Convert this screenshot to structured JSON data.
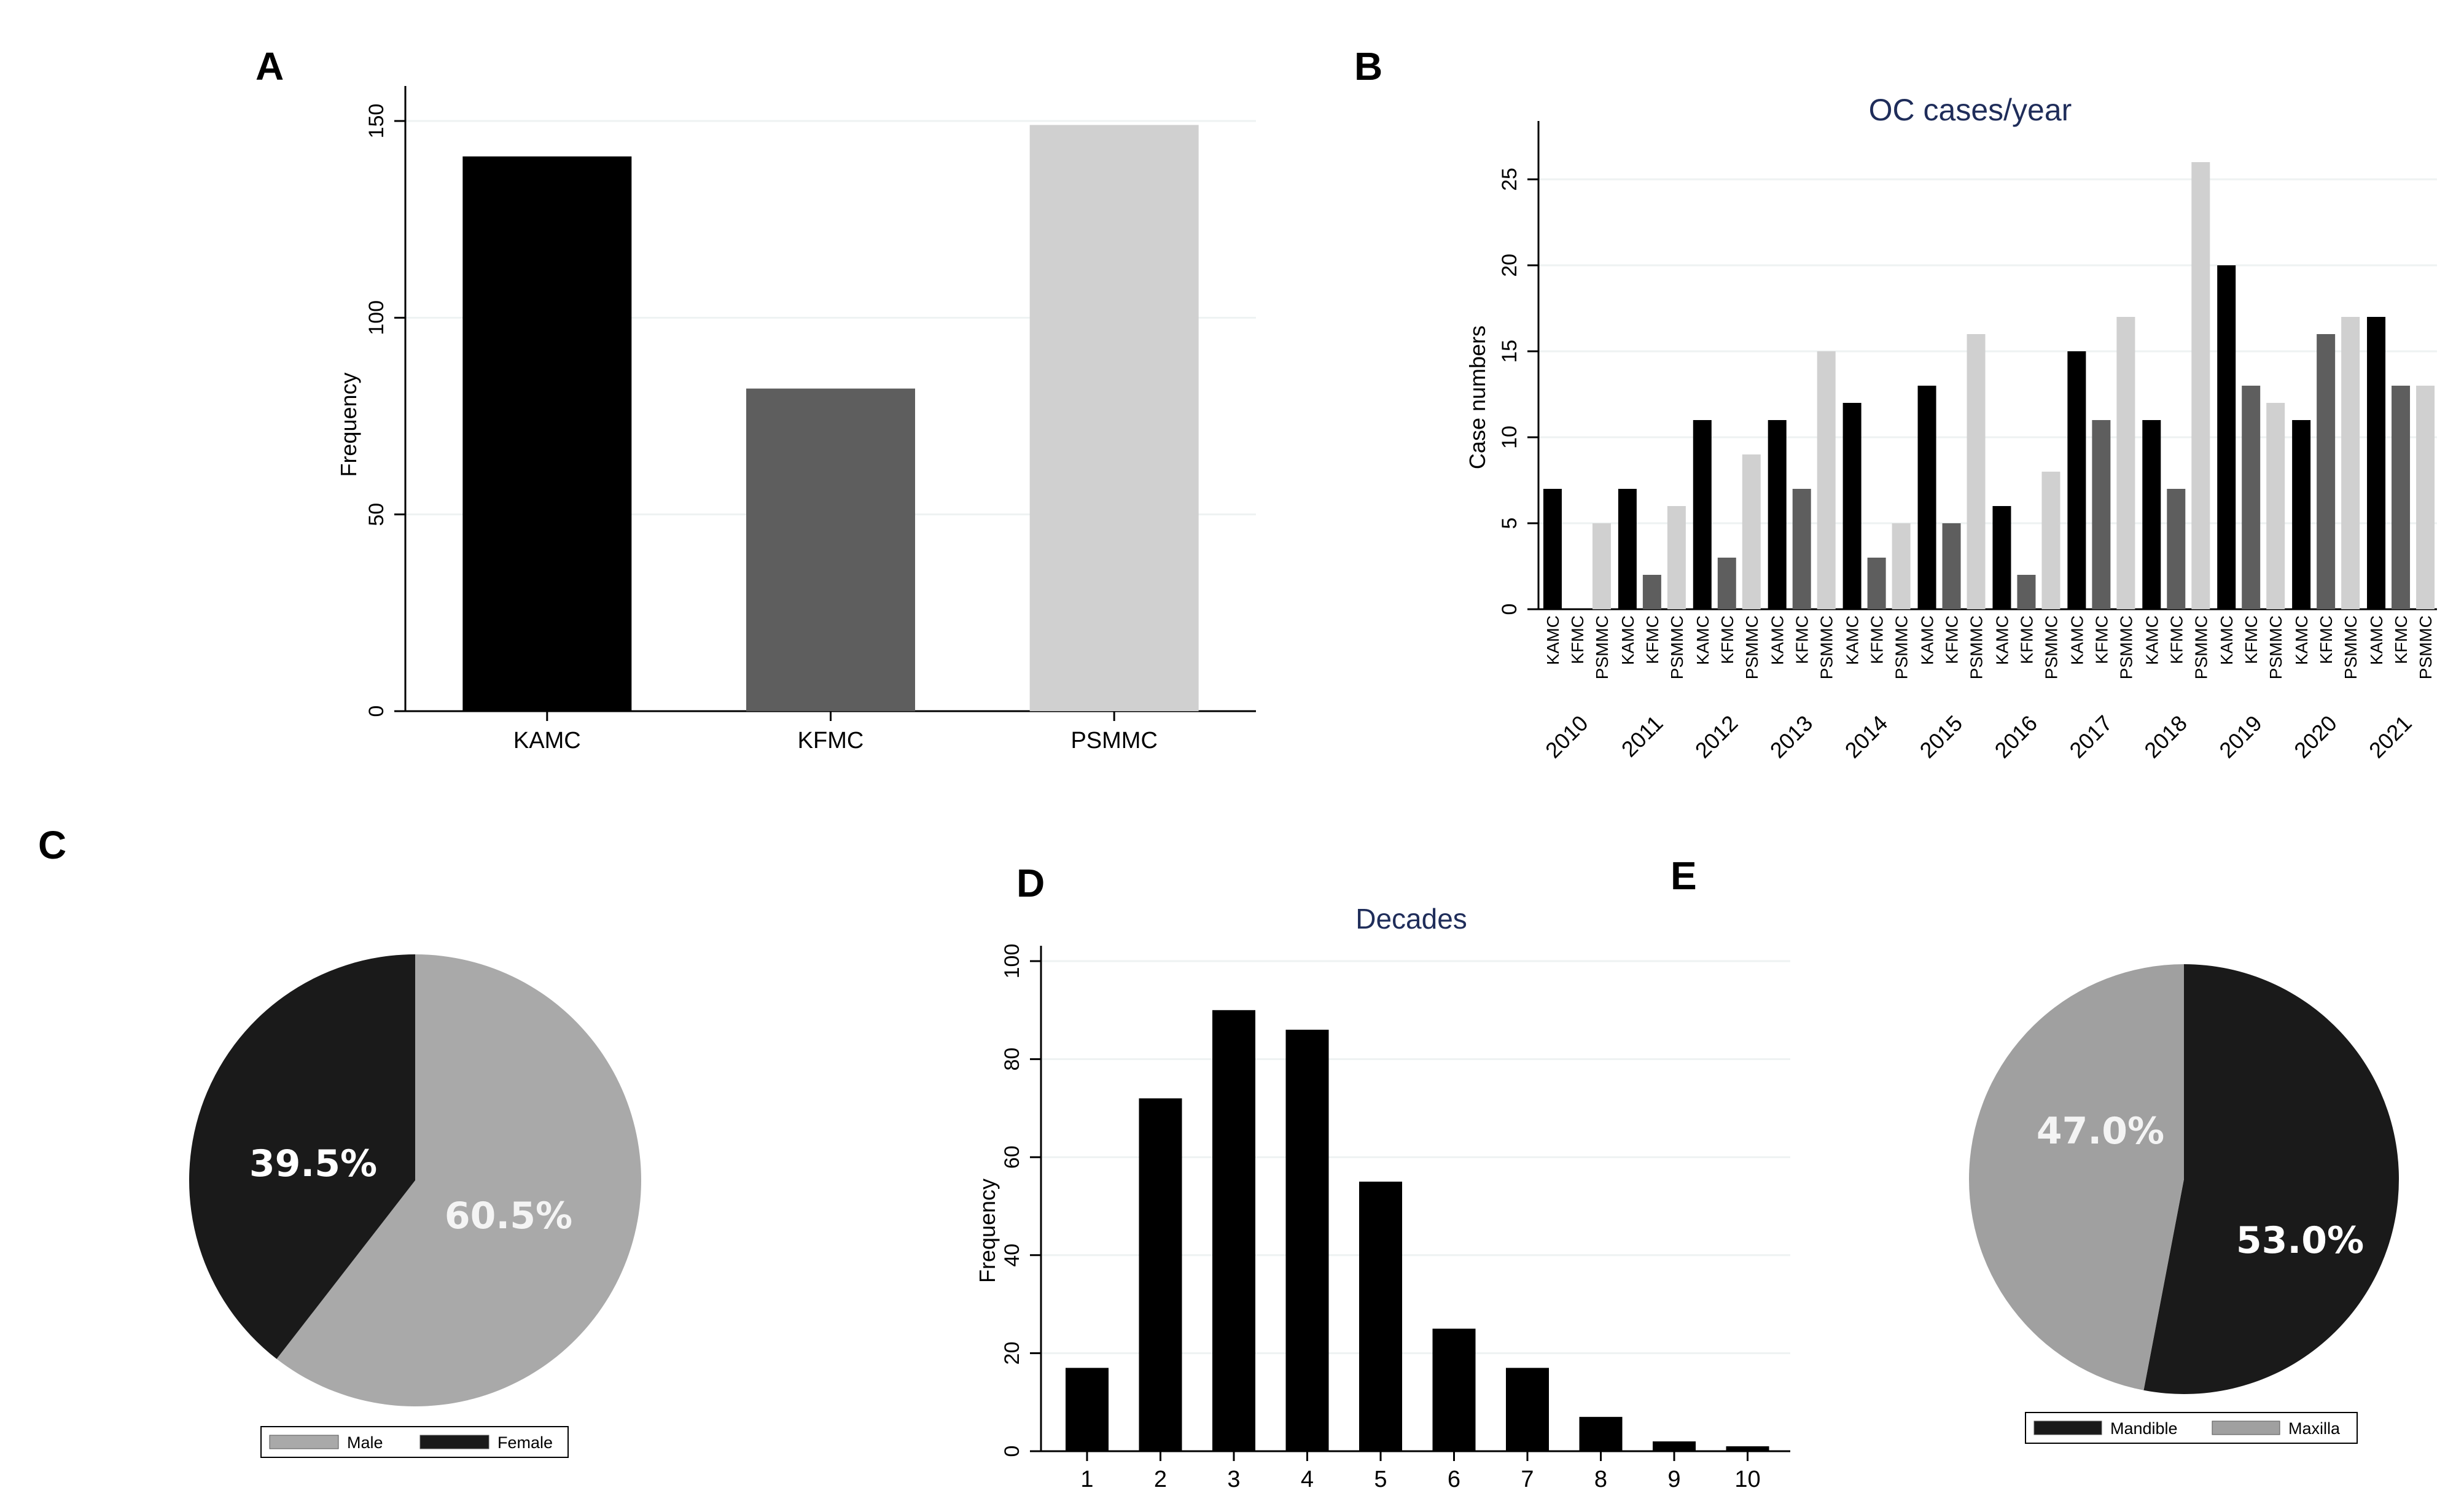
{
  "chart_data": [
    {
      "panel": "A",
      "type": "bar",
      "title": "",
      "xlabel": "",
      "ylabel": "Frequency",
      "categories": [
        "KAMC",
        "KFMC",
        "PSMMC"
      ],
      "values": [
        141,
        82,
        149
      ],
      "colors": [
        "#000000",
        "#5e5e5e",
        "#d0d0d0"
      ],
      "yticks": [
        0,
        50,
        100,
        150
      ],
      "ylim": [
        0,
        155
      ],
      "grid": true
    },
    {
      "panel": "B",
      "type": "bar",
      "title": "OC cases/year",
      "xlabel": "",
      "ylabel": "Case numbers",
      "categories": [
        "2010",
        "2011",
        "2012",
        "2013",
        "2014",
        "2015",
        "2016",
        "2017",
        "2018",
        "2019",
        "2020",
        "2021"
      ],
      "subcategories": [
        "KAMC",
        "KFMC",
        "PSMMC"
      ],
      "series": [
        {
          "name": "KAMC",
          "color": "#000000",
          "values": [
            7,
            7,
            11,
            11,
            12,
            13,
            6,
            15,
            11,
            20,
            11,
            17
          ]
        },
        {
          "name": "KFMC",
          "color": "#5e5e5e",
          "values": [
            0,
            2,
            3,
            7,
            3,
            5,
            2,
            11,
            7,
            13,
            16,
            13
          ]
        },
        {
          "name": "PSMMC",
          "color": "#d0d0d0",
          "values": [
            5,
            6,
            9,
            15,
            5,
            16,
            8,
            17,
            26,
            12,
            17,
            13
          ]
        }
      ],
      "yticks": [
        0,
        5,
        10,
        15,
        20,
        25
      ],
      "ylim": [
        0,
        27.5
      ],
      "grid": true
    },
    {
      "panel": "C",
      "type": "pie",
      "slices": [
        {
          "name": "Male",
          "value": 60.5,
          "label": "60.5%",
          "color": "#a9a9a9",
          "label_color": "#f4f4f4"
        },
        {
          "name": "Female",
          "value": 39.5,
          "label": "39.5%",
          "color": "#1a1a1a",
          "label_color": "#ffffff"
        }
      ],
      "legend": [
        "Male",
        "Female"
      ],
      "legend_position": "bottom"
    },
    {
      "panel": "D",
      "type": "bar",
      "title": "Decades",
      "xlabel": "",
      "ylabel": "Frequency",
      "categories": [
        "1",
        "2",
        "3",
        "4",
        "5",
        "6",
        "7",
        "8",
        "9",
        "10"
      ],
      "values": [
        17,
        72,
        90,
        86,
        55,
        25,
        17,
        7,
        2,
        1
      ],
      "colors": [
        "#000000"
      ],
      "yticks": [
        0,
        20,
        40,
        60,
        80,
        100
      ],
      "ylim": [
        0,
        100
      ],
      "grid": true
    },
    {
      "panel": "E",
      "type": "pie",
      "slices": [
        {
          "name": "Mandible",
          "value": 53.0,
          "label": "53.0%",
          "color": "#1a1a1a",
          "label_color": "#ffffff"
        },
        {
          "name": "Maxilla",
          "value": 47.0,
          "label": "47.0%",
          "color": "#a0a0a0",
          "label_color": "#f4f4f4"
        }
      ],
      "legend": [
        "Mandible",
        "Maxilla"
      ],
      "legend_position": "bottom"
    }
  ]
}
